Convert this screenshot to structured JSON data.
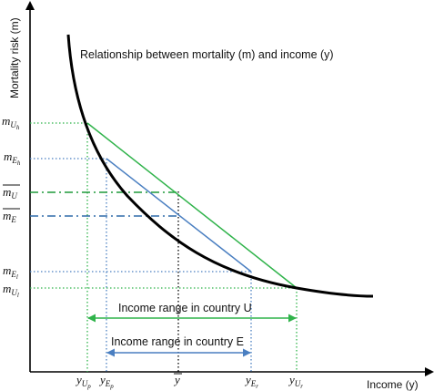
{
  "axes": {
    "y_label": "Mortality risk (m)",
    "x_label": "Income (y)"
  },
  "curve_title": "Relationship between mortality (m) and income (y)",
  "y_tick_labels": {
    "mUh": "m",
    "mUh_sub": "U",
    "mUh_subsub": "h",
    "mEh": "m",
    "mEh_sub": "E",
    "mEh_subsub": "h",
    "mUbar": "m",
    "mUbar_sub": "U",
    "mEbar": "m",
    "mEbar_sub": "E",
    "mEl": "m",
    "mEl_sub": "E",
    "mEl_subsub": "l",
    "mUl": "m",
    "mUl_sub": "U",
    "mUl_subsub": "l"
  },
  "x_tick_labels": {
    "yUp": "y",
    "yUp_sub": "U",
    "yUp_subsub": "p",
    "yEp": "y",
    "yEp_sub": "E",
    "yEp_subsub": "p",
    "ybar": "y",
    "yEr": "y",
    "yEr_sub": "E",
    "yEr_subsub": "r",
    "yUr": "y",
    "yUr_sub": "U",
    "yUr_subsub": "r"
  },
  "annotations": {
    "range_U": "Income range in country U",
    "range_E": "Income range in country E"
  },
  "colors": {
    "curve": "#000000",
    "country_U": "#2fb34a",
    "country_E": "#4a7fc1",
    "mean_dashdot_U": "#1f9a3a",
    "mean_dashdot_E": "#2e6aa8"
  }
}
